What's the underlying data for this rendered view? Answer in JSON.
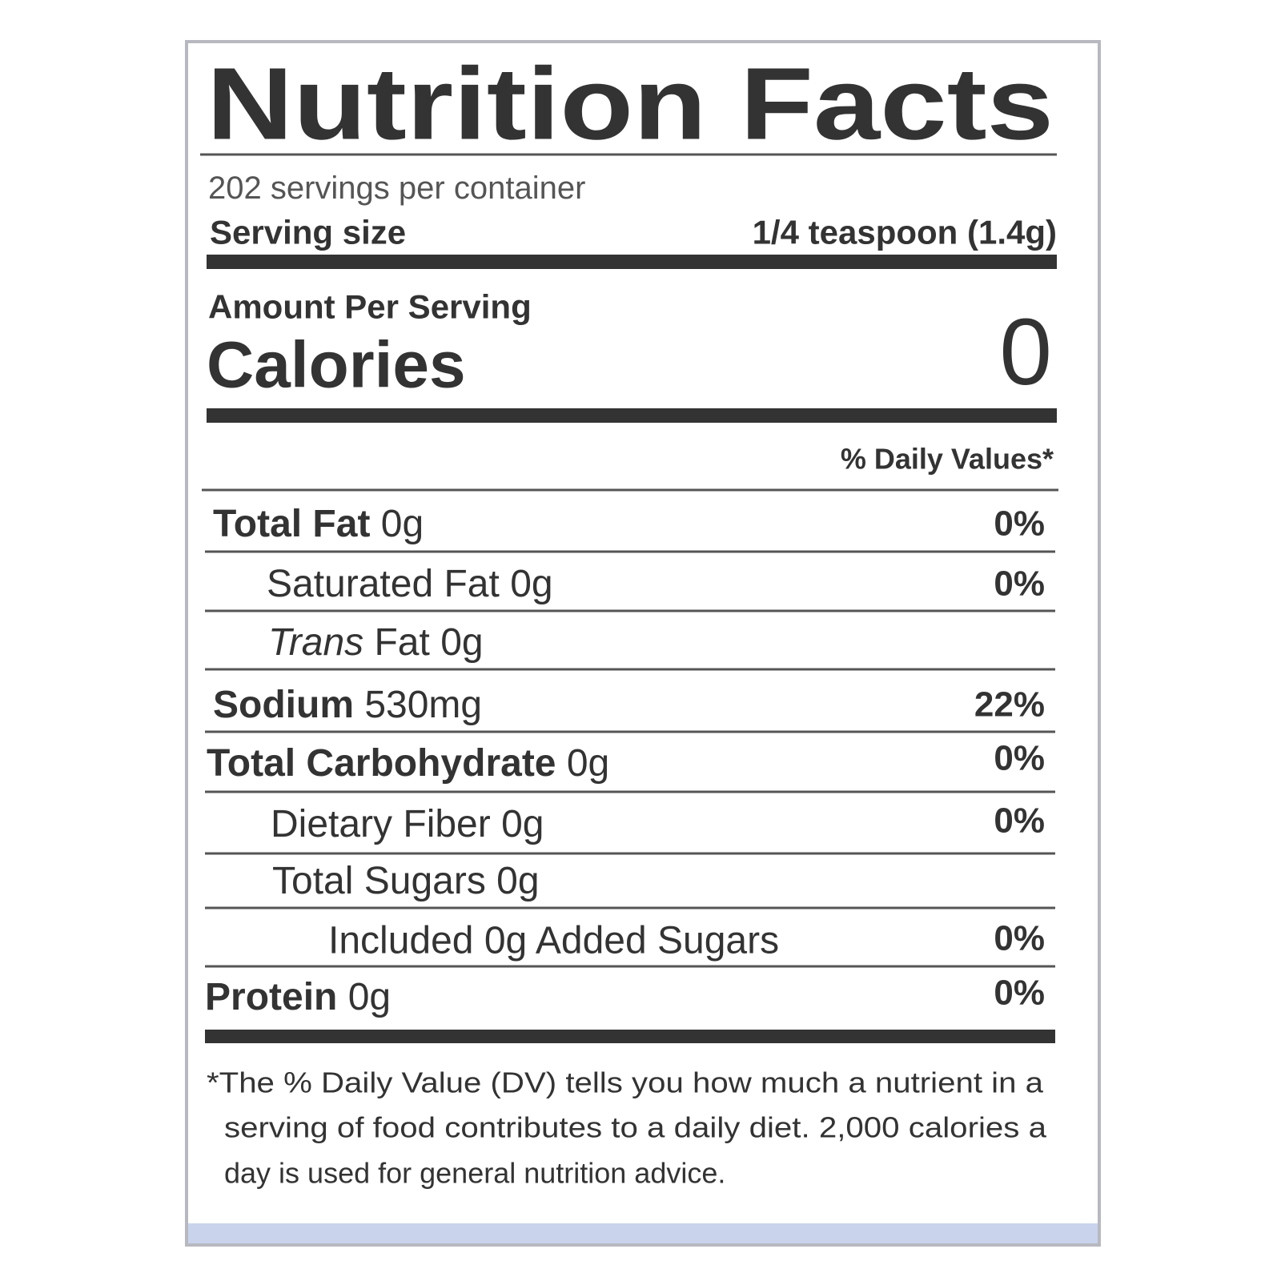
{
  "title": "Nutrition Facts",
  "servings_per_container": "202 servings per container",
  "serving_size": {
    "label": "Serving size",
    "value": "1/4 teaspoon (1.4g)"
  },
  "amount_per_serving": "Amount Per Serving",
  "calories": {
    "label": "Calories",
    "value": "0"
  },
  "daily_values_header": "% Daily Values*",
  "rows": [
    {
      "name": "Total Fat",
      "amount": "0g",
      "dv": "0%"
    },
    {
      "name": "Saturated Fat",
      "amount": "0g",
      "dv": "0%"
    },
    {
      "name_italic": "Trans",
      "name": "Fat",
      "amount": "0g"
    },
    {
      "name": "Sodium",
      "amount": "530mg",
      "dv": "22%"
    },
    {
      "name": "Total Carbohydrate",
      "amount": "0g",
      "dv": "0%"
    },
    {
      "name": "Dietary Fiber",
      "amount": "0g",
      "dv": "0%"
    },
    {
      "name": "Total Sugars",
      "amount": "0g"
    },
    {
      "text": "Included 0g Added Sugars",
      "dv": "0%"
    },
    {
      "name": "Protein",
      "amount": "0g",
      "dv": "0%"
    }
  ],
  "footnote": [
    "*The % Daily Value (DV) tells you how much a nutrient in a",
    "serving of food contributes to a daily diet. 2,000 calories a",
    "day is used for general nutrition advice."
  ]
}
